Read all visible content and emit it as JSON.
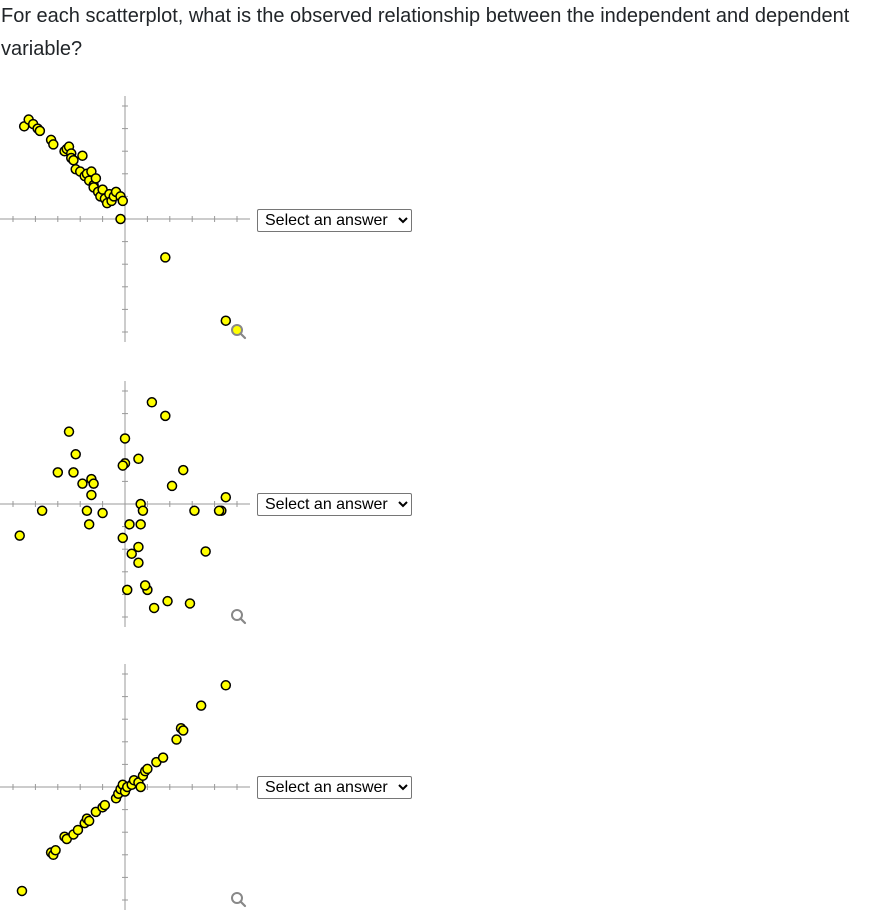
{
  "question": "For each scatterplot, what is the observed relationship between the independent and dependent variable?",
  "select_placeholder": "Select an answer",
  "point_fill": "#ffff00",
  "point_stroke": "#000000",
  "axis_color": "#999999",
  "chart_data": [
    {
      "type": "scatter",
      "xlim": [
        -5,
        5
      ],
      "ylim": [
        -5,
        5
      ],
      "grid": false,
      "tick_labels": false,
      "x": [
        -4.5,
        -4.3,
        -4.1,
        -3.9,
        -3.8,
        -3.3,
        -3.2,
        -2.7,
        -2.6,
        -2.5,
        -2.4,
        -2.4,
        -2.3,
        -2.2,
        -2.0,
        -1.9,
        -1.8,
        -1.7,
        -1.6,
        -1.5,
        -1.4,
        -1.4,
        -1.3,
        -1.2,
        -1.1,
        -1.0,
        -0.9,
        -0.8,
        -0.7,
        -0.6,
        -0.5,
        -0.4,
        -0.2,
        -0.1,
        -0.2,
        1.8,
        4.5
      ],
      "y": [
        4.1,
        4.4,
        4.2,
        4.0,
        3.9,
        3.5,
        3.3,
        3.0,
        3.1,
        3.2,
        2.9,
        2.7,
        2.6,
        2.2,
        2.1,
        2.8,
        1.9,
        2.0,
        1.7,
        2.1,
        1.5,
        1.4,
        1.8,
        1.2,
        1.0,
        1.3,
        0.9,
        0.7,
        1.1,
        0.8,
        1.0,
        1.2,
        1.0,
        0.8,
        0.0,
        -1.7,
        -4.5
      ]
    },
    {
      "type": "scatter",
      "xlim": [
        -5,
        5
      ],
      "ylim": [
        -5,
        5
      ],
      "grid": false,
      "tick_labels": false,
      "x": [
        -4.7,
        -3.7,
        -3.0,
        -2.3,
        -1.9,
        -2.5,
        -2.2,
        -1.6,
        -1.5,
        -1.5,
        -1.4,
        -1.7,
        -1.0,
        0.0,
        0.0,
        0.6,
        1.2,
        1.8,
        -0.1,
        0.7,
        2.1,
        2.6,
        3.1,
        4.3,
        4.5,
        4.2,
        3.6,
        0.3,
        0.6,
        1.0,
        0.1,
        0.9,
        1.9,
        2.9,
        1.3,
        -0.1,
        0.2,
        0.6,
        0.7,
        0.8
      ],
      "y": [
        -1.4,
        -0.3,
        1.4,
        1.4,
        0.9,
        3.2,
        2.2,
        -0.9,
        0.4,
        1.1,
        0.9,
        -0.3,
        -0.4,
        2.9,
        1.8,
        2.0,
        4.5,
        3.9,
        1.7,
        0.0,
        0.8,
        1.5,
        -0.3,
        -0.3,
        0.3,
        -0.3,
        -2.1,
        -2.2,
        -2.6,
        -3.8,
        -3.8,
        -3.6,
        -4.3,
        -4.4,
        -4.6,
        -1.5,
        -0.9,
        -1.9,
        -0.9,
        -0.3
      ],
      "_note": ""
    },
    {
      "type": "scatter",
      "xlim": [
        -5,
        5
      ],
      "ylim": [
        -5,
        5
      ],
      "grid": false,
      "tick_labels": false,
      "x": [
        -4.6,
        -3.3,
        -3.2,
        -3.1,
        -2.7,
        -2.6,
        -2.3,
        -2.1,
        -1.8,
        -1.7,
        -1.6,
        -1.3,
        -1.0,
        -0.9,
        -0.4,
        -0.3,
        -0.2,
        -0.1,
        0.0,
        0.1,
        0.3,
        0.4,
        0.6,
        0.7,
        0.8,
        0.9,
        1.0,
        1.4,
        1.7,
        2.3,
        2.5,
        2.6,
        3.4,
        4.5
      ],
      "y": [
        -4.6,
        -2.9,
        -3.0,
        -2.8,
        -2.2,
        -2.3,
        -2.1,
        -1.9,
        -1.6,
        -1.4,
        -1.5,
        -1.1,
        -0.9,
        -0.8,
        -0.5,
        -0.3,
        -0.1,
        0.1,
        -0.2,
        0.0,
        0.1,
        0.3,
        0.2,
        0.0,
        0.5,
        0.7,
        0.8,
        1.1,
        1.3,
        2.1,
        2.6,
        2.5,
        3.6,
        4.5
      ]
    }
  ]
}
